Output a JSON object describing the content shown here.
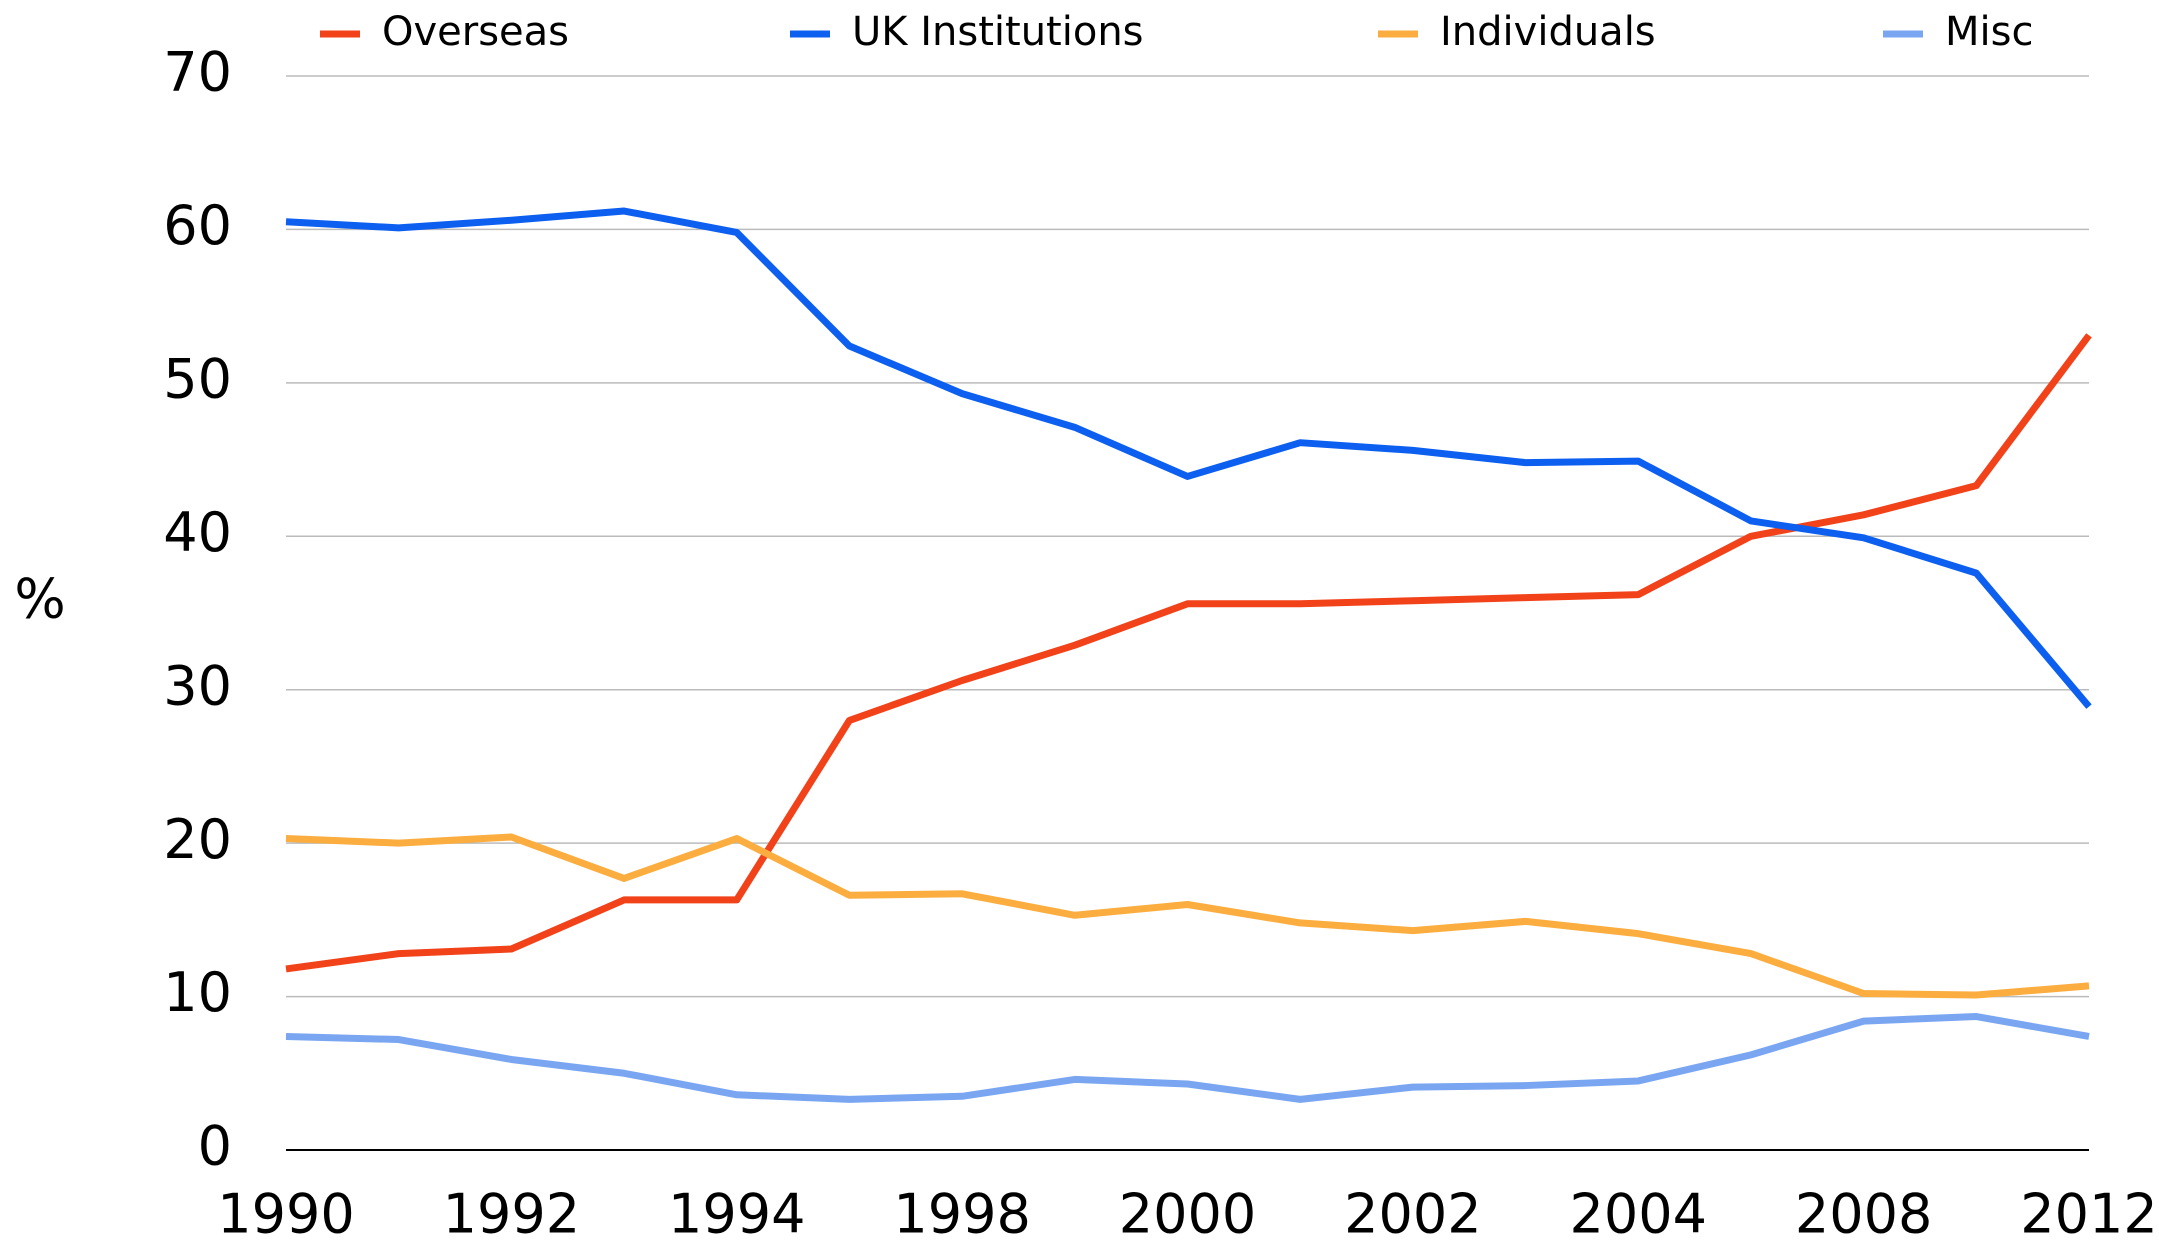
{
  "chart_data": {
    "type": "line",
    "y_label": "%",
    "categories": [
      "1990",
      null,
      "1992",
      null,
      "1994",
      null,
      "1998",
      null,
      "2000",
      null,
      "2002",
      null,
      "2004",
      null,
      "2008",
      null,
      "2012"
    ],
    "series": [
      {
        "name": "Overseas",
        "color": "#f2421a",
        "values": [
          11.8,
          12.8,
          13.1,
          16.3,
          16.3,
          28.0,
          30.6,
          32.9,
          35.6,
          35.6,
          35.8,
          36.0,
          36.2,
          40.0,
          41.4,
          43.3,
          53.1
        ]
      },
      {
        "name": "UK Institutions",
        "color": "#0d5ff0",
        "values": [
          60.5,
          60.1,
          60.6,
          61.2,
          59.8,
          52.4,
          49.3,
          47.1,
          43.9,
          46.1,
          45.6,
          44.8,
          44.9,
          41.0,
          39.9,
          37.6,
          28.9
        ]
      },
      {
        "name": "Individuals",
        "color": "#fbad3f",
        "values": [
          20.3,
          20.0,
          20.4,
          17.7,
          20.3,
          16.6,
          16.7,
          15.3,
          16.0,
          14.8,
          14.3,
          14.9,
          14.1,
          12.8,
          10.2,
          10.1,
          10.7
        ]
      },
      {
        "name": "Misc",
        "color": "#7aa6f1",
        "values": [
          7.4,
          7.2,
          5.9,
          5.0,
          3.6,
          3.3,
          3.5,
          4.6,
          4.3,
          3.3,
          4.1,
          4.2,
          4.5,
          6.2,
          8.4,
          8.7,
          7.4
        ]
      }
    ],
    "ylim": [
      0,
      70
    ],
    "yticks": [
      0,
      10,
      20,
      30,
      40,
      50,
      60,
      70
    ],
    "grid": true,
    "legend": "top"
  }
}
